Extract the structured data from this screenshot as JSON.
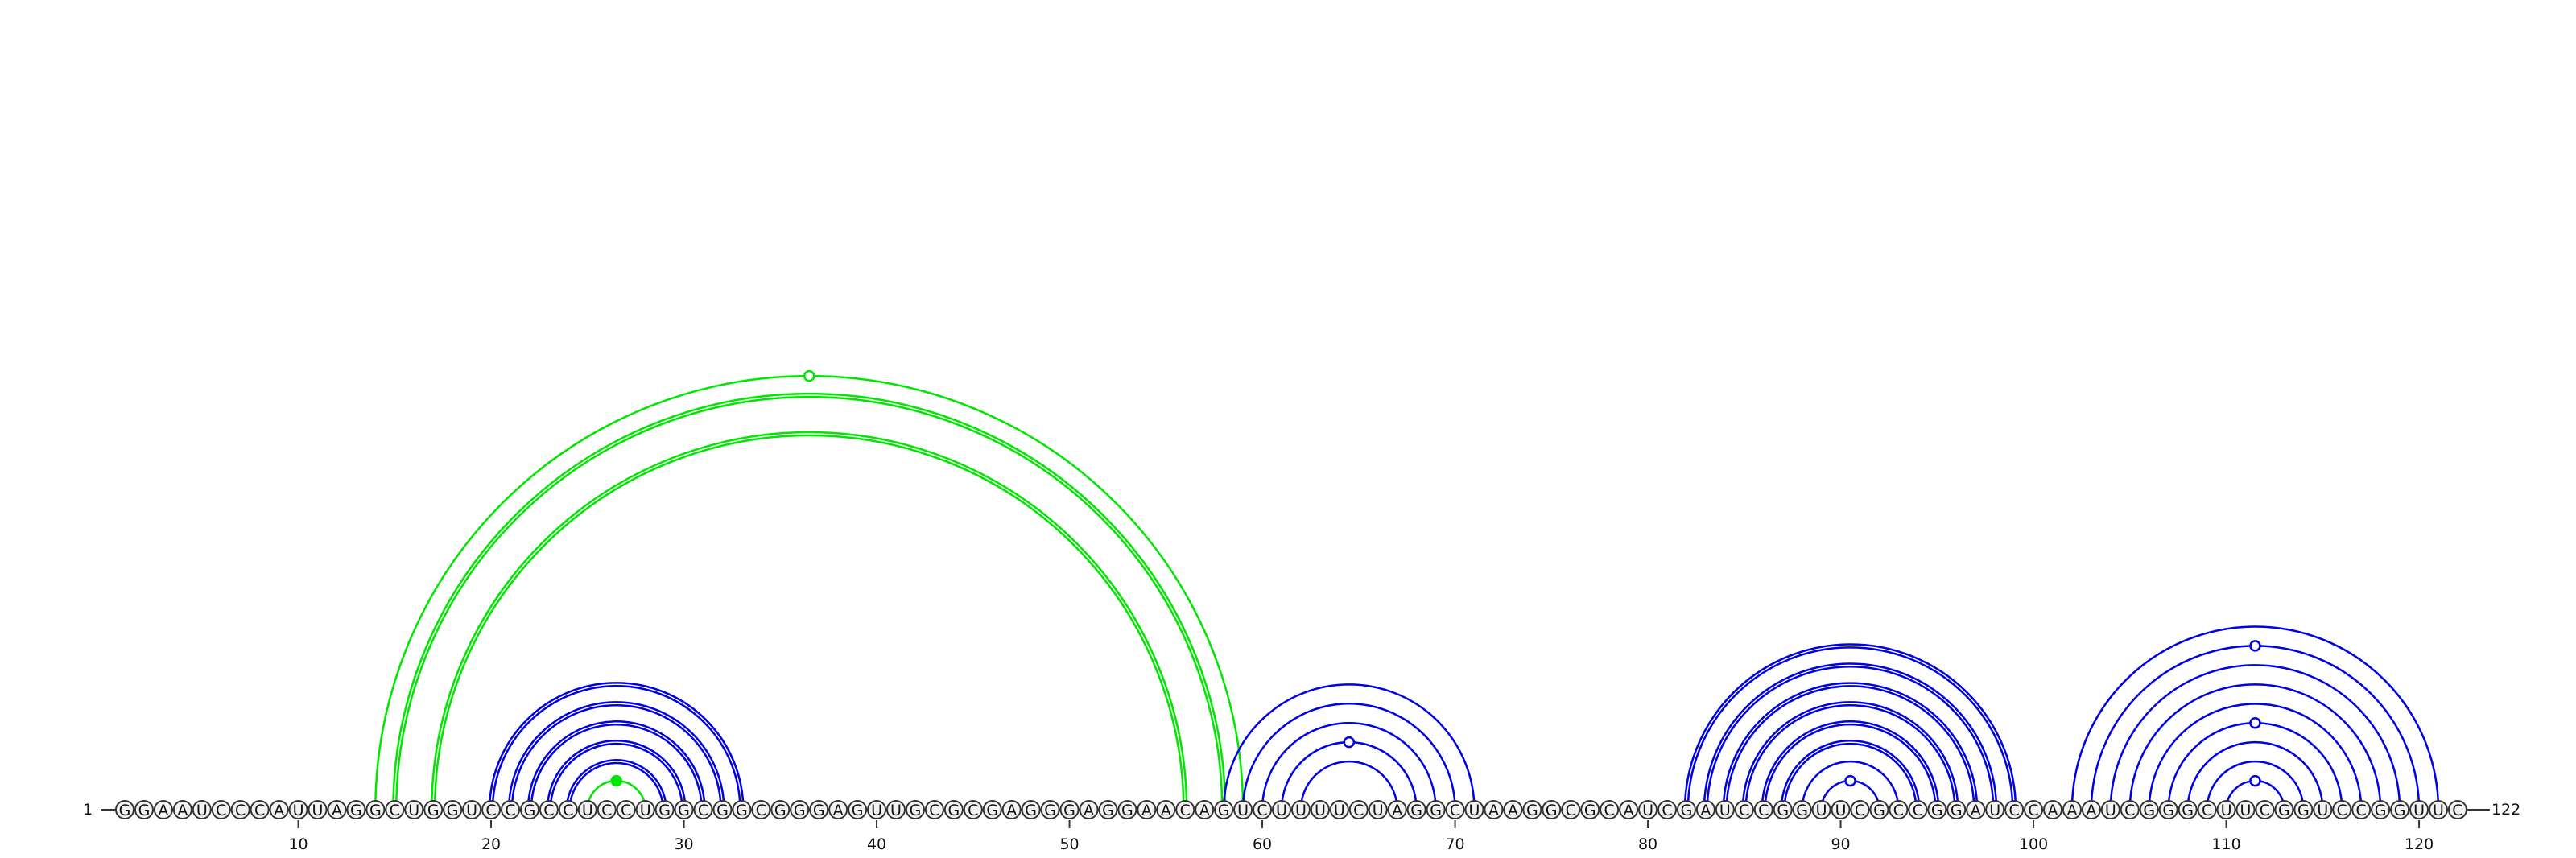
{
  "sequence": "GGAAUCCCAUUAGGCUGGUCCGCCUCCUGGCGGCGGGAGUUGCGCGAGGGAGGAACAGUCUUUUCUAGGCUAAGGCGCAUCGAUCCGGUUCGCCGGAUCCAAAUCGGGCUUCGGUCCGGUUC",
  "start_label": "1",
  "end_label": "122",
  "ticks": [
    "10",
    "20",
    "30",
    "40",
    "50",
    "60",
    "70",
    "80",
    "90",
    "100",
    "110",
    "120"
  ],
  "colors": {
    "blue": "#0000e6",
    "green": "#00e600",
    "backbone": "#333333"
  },
  "arc_groups": [
    {
      "color": "green",
      "double": true,
      "pairs": [
        [
          15,
          58
        ],
        [
          17,
          56
        ]
      ]
    },
    {
      "color": "green",
      "double": false,
      "pairs": [
        [
          14,
          59
        ]
      ],
      "mark": "open"
    },
    {
      "color": "green",
      "double": false,
      "pairs": [
        [
          25,
          28
        ]
      ],
      "mark": "filled"
    },
    {
      "color": "blue",
      "double": true,
      "pairs": [
        [
          20,
          33
        ],
        [
          21,
          32
        ],
        [
          22,
          31
        ],
        [
          23,
          30
        ],
        [
          24,
          29
        ]
      ]
    },
    {
      "color": "blue",
      "double": false,
      "pairs": [
        [
          58,
          71
        ],
        [
          59,
          70
        ],
        [
          60,
          69
        ],
        [
          61,
          68
        ],
        [
          62,
          67
        ]
      ],
      "mark_pair": [
        61,
        68
      ]
    },
    {
      "color": "blue",
      "double": true,
      "pairs": [
        [
          82,
          99
        ],
        [
          83,
          98
        ],
        [
          84,
          97
        ],
        [
          85,
          96
        ],
        [
          86,
          95
        ],
        [
          87,
          94
        ]
      ]
    },
    {
      "color": "blue",
      "double": false,
      "pairs": [
        [
          88,
          93
        ],
        [
          89,
          92
        ]
      ],
      "mark_pair": [
        89,
        92
      ]
    },
    {
      "color": "blue",
      "double": false,
      "pairs": [
        [
          102,
          121
        ],
        [
          103,
          120
        ],
        [
          104,
          119
        ],
        [
          105,
          118
        ],
        [
          106,
          117
        ],
        [
          107,
          116
        ],
        [
          108,
          115
        ],
        [
          109,
          114
        ],
        [
          110,
          113
        ]
      ],
      "mark_pairs": [
        [
          103,
          120
        ],
        [
          107,
          116
        ],
        [
          110,
          113
        ]
      ]
    }
  ]
}
